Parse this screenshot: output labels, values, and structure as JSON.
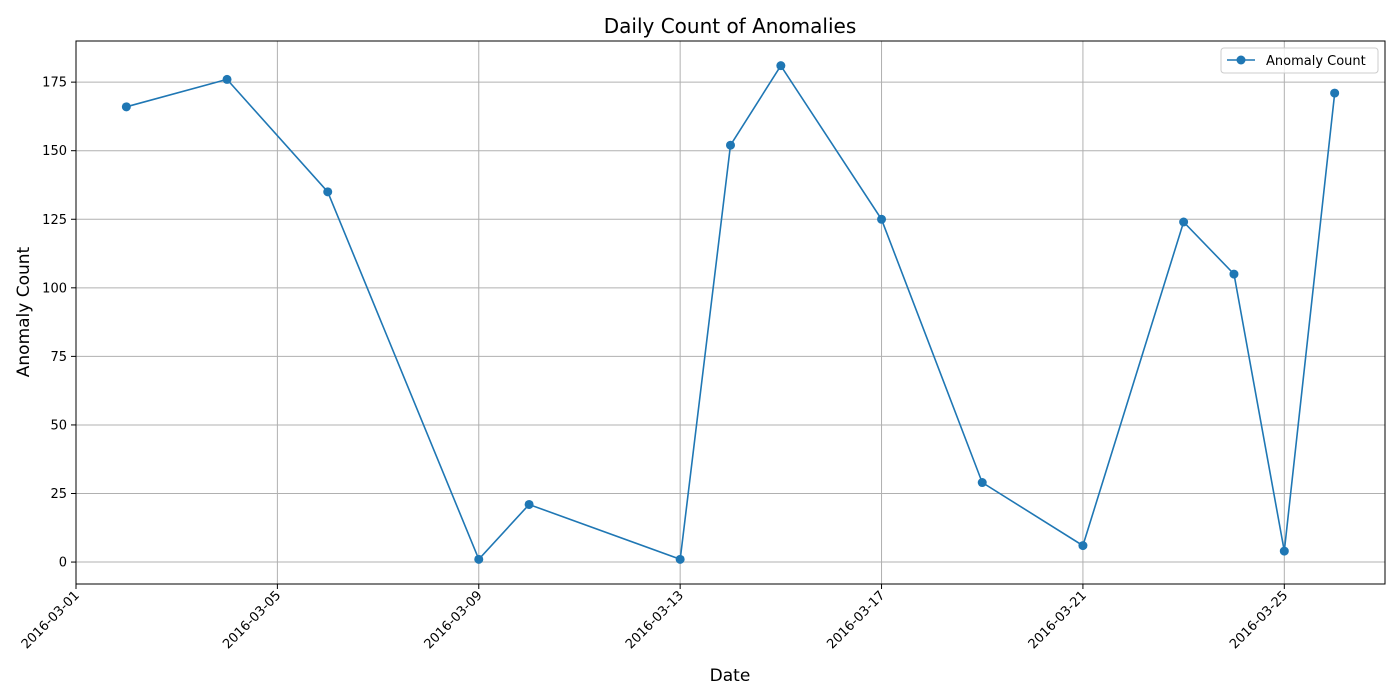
{
  "chart_data": {
    "type": "line",
    "title": "Daily Count of Anomalies",
    "xlabel": "Date",
    "ylabel": "Anomaly Count",
    "x_type": "date",
    "x_ticks": [
      "2016-03-01",
      "2016-03-05",
      "2016-03-09",
      "2016-03-13",
      "2016-03-17",
      "2016-03-21",
      "2016-03-25"
    ],
    "y_ticks": [
      0,
      25,
      50,
      75,
      100,
      125,
      150,
      175
    ],
    "xlim": [
      "2016-03-01",
      "2016-03-27"
    ],
    "ylim": [
      -8,
      190
    ],
    "grid": true,
    "legend_position": "top-right",
    "series": [
      {
        "name": "Anomaly Count",
        "color": "#1f77b4",
        "marker": "circle",
        "points": [
          {
            "x": "2016-03-02",
            "y": 166
          },
          {
            "x": "2016-03-04",
            "y": 176
          },
          {
            "x": "2016-03-06",
            "y": 135
          },
          {
            "x": "2016-03-09",
            "y": 1
          },
          {
            "x": "2016-03-10",
            "y": 21
          },
          {
            "x": "2016-03-13",
            "y": 1
          },
          {
            "x": "2016-03-14",
            "y": 152
          },
          {
            "x": "2016-03-15",
            "y": 181
          },
          {
            "x": "2016-03-17",
            "y": 125
          },
          {
            "x": "2016-03-19",
            "y": 29
          },
          {
            "x": "2016-03-21",
            "y": 6
          },
          {
            "x": "2016-03-23",
            "y": 124
          },
          {
            "x": "2016-03-24",
            "y": 105
          },
          {
            "x": "2016-03-25",
            "y": 4
          },
          {
            "x": "2016-03-26",
            "y": 171
          }
        ]
      }
    ]
  }
}
